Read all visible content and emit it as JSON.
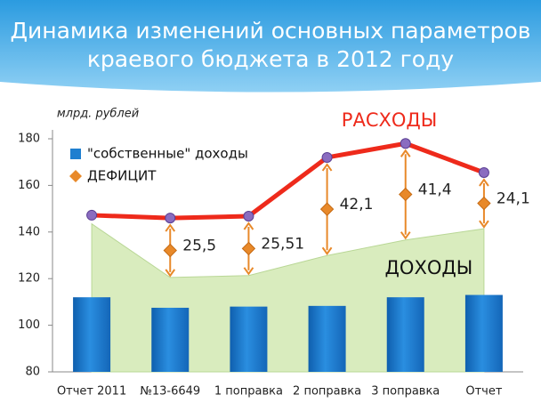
{
  "chart_data": {
    "type": "combo",
    "title": [
      "Динамика изменений основных параметров",
      "краевого бюджета в 2012 году"
    ],
    "y_label": "млрд. рублей",
    "categories": [
      "Отчет 2011",
      "№13-6649",
      "1 поправка",
      "2 поправка",
      "3 поправка",
      "Отчет"
    ],
    "ylim": [
      80,
      180
    ],
    "yticks": [
      80,
      100,
      120,
      140,
      160,
      180
    ],
    "series": [
      {
        "name": "\"собственные\" доходы",
        "kind": "bar",
        "color": "#1f7fd0",
        "values": [
          112,
          107.5,
          108,
          108.3,
          112,
          113
        ]
      },
      {
        "name": "ДОХОДЫ",
        "kind": "area",
        "color": "#d9ecbe",
        "values": [
          143.5,
          120.5,
          121.3,
          129.9,
          136.6,
          141.4
        ]
      },
      {
        "name": "РАСХОДЫ",
        "kind": "line",
        "color": "#ee2a1b",
        "values": [
          147.2,
          146,
          146.8,
          172,
          178,
          165.5
        ]
      },
      {
        "name": "ДЕФИЦИТ",
        "kind": "deficit",
        "color": "#e8892a",
        "values": [
          null,
          25.5,
          25.51,
          42.1,
          41.4,
          24.1
        ],
        "value_labels": [
          null,
          "25,5",
          "25,51",
          "42,1",
          "41,4",
          "24,1"
        ]
      }
    ]
  }
}
